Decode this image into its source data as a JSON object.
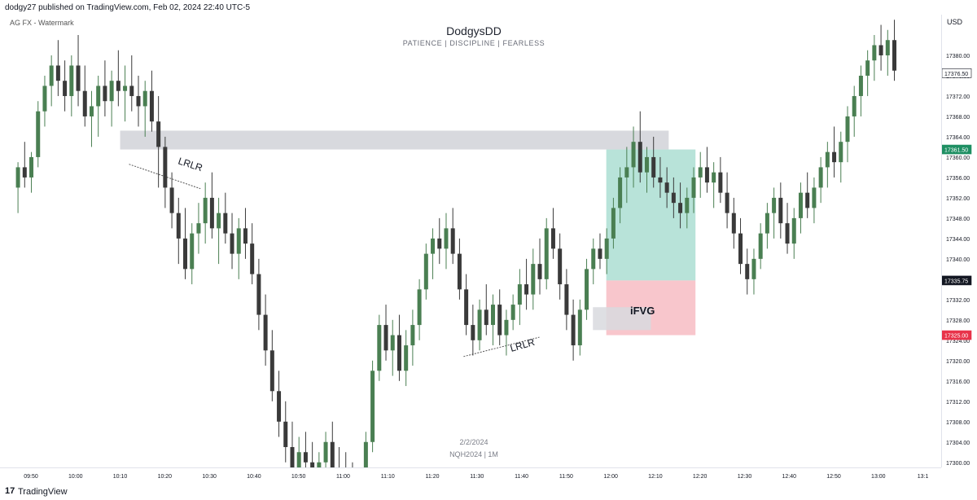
{
  "header": {
    "publish_line": "dodgy27 published on TradingView.com, Feb 02, 2024 22:40 UTC-5",
    "watermark_left": "AG FX - Watermark",
    "title": "DodgysDD",
    "subtitle": "PATIENCE   |   DISCIPLINE   |   FEARLESS",
    "currency": "USD",
    "date": "2/2/2024",
    "symbol": "NQH2024 | 1M"
  },
  "footer": {
    "logo": "17",
    "brand": "TradingView"
  },
  "colors": {
    "bull": "#4a7f52",
    "bear": "#3a3a3a",
    "green_zone": "#b8e3d9",
    "red_zone": "#f8c6cc",
    "gray_zone": "#d8d9de",
    "tag_green": "#1e8f63",
    "tag_black": "#131722",
    "tag_red": "#e8334a"
  },
  "annotations": {
    "lrlr_top": "LRLR",
    "lrlr_bottom": "LRLR",
    "ifvg": "iFVG"
  },
  "price_tags": {
    "last": "17376.50",
    "green": "17361.50",
    "black": "17335.75",
    "red": "17325.00"
  },
  "chart_data": {
    "type": "candlestick",
    "title": "DodgysDD",
    "symbol": "NQH2024",
    "timeframe": "1M",
    "ylim": [
      17299,
      17388
    ],
    "y_ticks": [
      "17380.00",
      "17376.00",
      "17372.00",
      "17368.00",
      "17364.00",
      "17360.00",
      "17356.00",
      "17352.00",
      "17348.00",
      "17344.00",
      "17340.00",
      "17336.00",
      "17332.00",
      "17328.00",
      "17324.00",
      "17320.00",
      "17316.00",
      "17312.00",
      "17308.00",
      "17304.00",
      "17300.00"
    ],
    "y_tick_values": [
      17380,
      17376,
      17372,
      17368,
      17364,
      17360,
      17356,
      17352,
      17348,
      17344,
      17340,
      17336,
      17332,
      17328,
      17324,
      17320,
      17316,
      17312,
      17308,
      17304,
      17300
    ],
    "x_ticks": [
      "09:50",
      "10:00",
      "10:10",
      "10:20",
      "10:30",
      "10:40",
      "10:50",
      "11:00",
      "11:10",
      "11:20",
      "11:30",
      "11:40",
      "11:50",
      "12:00",
      "12:10",
      "12:20",
      "12:30",
      "12:40",
      "12:50",
      "13:00",
      "13:1"
    ],
    "x_tick_minutes": [
      0,
      10,
      20,
      30,
      40,
      50,
      60,
      70,
      80,
      90,
      100,
      110,
      120,
      130,
      140,
      150,
      160,
      170,
      180,
      190,
      200
    ],
    "start_time": "09:46",
    "zones": [
      {
        "name": "gray-supply-zone",
        "from": "10:10",
        "to": "12:13",
        "top": 17365.2,
        "bottom": 17361.5
      },
      {
        "name": "green-target-zone",
        "from": "11:59",
        "to": "12:19",
        "top": 17361.5,
        "bottom": 17335.75
      },
      {
        "name": "red-stop-zone",
        "from": "11:59",
        "to": "12:19",
        "top": 17335.75,
        "bottom": 17325.0
      },
      {
        "name": "ifvg-zone",
        "from": "11:56",
        "to": "12:09",
        "top": 17330.5,
        "bottom": 17326.0
      }
    ],
    "trendlines": [
      {
        "name": "lrlr-top-line",
        "from": [
          "10:12",
          17358.6
        ],
        "to": [
          "10:28",
          17353.8
        ]
      },
      {
        "name": "lrlr-bottom-line",
        "from": [
          "11:27",
          17320.8
        ],
        "to": [
          "11:44",
          17324.6
        ]
      }
    ],
    "candles": [
      [
        17354,
        17359,
        17349,
        17358
      ],
      [
        17358,
        17363,
        17354,
        17356
      ],
      [
        17356,
        17361,
        17353,
        17360
      ],
      [
        17360,
        17371,
        17358,
        17369
      ],
      [
        17369,
        17376,
        17366,
        17374
      ],
      [
        17374,
        17380,
        17370,
        17378
      ],
      [
        17378,
        17383,
        17372,
        17375
      ],
      [
        17375,
        17379,
        17369,
        17372
      ],
      [
        17372,
        17380,
        17368,
        17378
      ],
      [
        17378,
        17384,
        17370,
        17373
      ],
      [
        17373,
        17378,
        17366,
        17368
      ],
      [
        17368,
        17373,
        17362,
        17370
      ],
      [
        17370,
        17376,
        17364,
        17374
      ],
      [
        17374,
        17379,
        17368,
        17371
      ],
      [
        17371,
        17377,
        17366,
        17375
      ],
      [
        17375,
        17381,
        17370,
        17373
      ],
      [
        17373,
        17378,
        17367,
        17374
      ],
      [
        17374,
        17380,
        17369,
        17372
      ],
      [
        17372,
        17376,
        17366,
        17370
      ],
      [
        17370,
        17375,
        17364,
        17373
      ],
      [
        17373,
        17377,
        17365,
        17367
      ],
      [
        17367,
        17372,
        17354,
        17362
      ],
      [
        17362,
        17364,
        17350,
        17354
      ],
      [
        17354,
        17357,
        17346,
        17349
      ],
      [
        17349,
        17352,
        17339,
        17344
      ],
      [
        17344,
        17350,
        17336,
        17338
      ],
      [
        17338,
        17347,
        17335,
        17345
      ],
      [
        17345,
        17351,
        17341,
        17347
      ],
      [
        17347,
        17355,
        17343,
        17352
      ],
      [
        17352,
        17357,
        17344,
        17346
      ],
      [
        17346,
        17352,
        17339,
        17349
      ],
      [
        17349,
        17353,
        17343,
        17345
      ],
      [
        17345,
        17349,
        17338,
        17341
      ],
      [
        17341,
        17348,
        17336,
        17346
      ],
      [
        17346,
        17350,
        17340,
        17343
      ],
      [
        17343,
        17347,
        17335,
        17337
      ],
      [
        17337,
        17340,
        17326,
        17329
      ],
      [
        17329,
        17333,
        17319,
        17322
      ],
      [
        17322,
        17326,
        17312,
        17314
      ],
      [
        17314,
        17318,
        17305,
        17308
      ],
      [
        17308,
        17312,
        17300,
        17303
      ],
      [
        17303,
        17308,
        17296,
        17299
      ],
      [
        17299,
        17305,
        17294,
        17302
      ],
      [
        17302,
        17306,
        17295,
        17300
      ],
      [
        17300,
        17304,
        17293,
        17296
      ],
      [
        17296,
        17302,
        17292,
        17300
      ],
      [
        17300,
        17306,
        17296,
        17304
      ],
      [
        17304,
        17308,
        17297,
        17299
      ],
      [
        17299,
        17303,
        17293,
        17297
      ],
      [
        17297,
        17302,
        17291,
        17295
      ],
      [
        17295,
        17300,
        17289,
        17293
      ],
      [
        17293,
        17298,
        17288,
        17296
      ],
      [
        17296,
        17306,
        17293,
        17304
      ],
      [
        17304,
        17320,
        17302,
        17318
      ],
      [
        17318,
        17329,
        17316,
        17327
      ],
      [
        17327,
        17331,
        17320,
        17322
      ],
      [
        17322,
        17328,
        17317,
        17325
      ],
      [
        17325,
        17329,
        17316,
        17318
      ],
      [
        17318,
        17326,
        17315,
        17323
      ],
      [
        17323,
        17330,
        17319,
        17327
      ],
      [
        17327,
        17336,
        17324,
        17334
      ],
      [
        17334,
        17343,
        17332,
        17341
      ],
      [
        17341,
        17346,
        17336,
        17344
      ],
      [
        17344,
        17348,
        17339,
        17342
      ],
      [
        17342,
        17349,
        17338,
        17346
      ],
      [
        17346,
        17350,
        17339,
        17341
      ],
      [
        17341,
        17344,
        17332,
        17334
      ],
      [
        17334,
        17337,
        17325,
        17327
      ],
      [
        17327,
        17331,
        17321,
        17324
      ],
      [
        17324,
        17332,
        17322,
        17330
      ],
      [
        17330,
        17335,
        17325,
        17327
      ],
      [
        17327,
        17333,
        17323,
        17331
      ],
      [
        17331,
        17334,
        17323,
        17325
      ],
      [
        17325,
        17330,
        17321,
        17328
      ],
      [
        17328,
        17333,
        17326,
        17331
      ],
      [
        17331,
        17338,
        17327,
        17335
      ],
      [
        17335,
        17340,
        17330,
        17333
      ],
      [
        17333,
        17342,
        17330,
        17339
      ],
      [
        17339,
        17344,
        17333,
        17336
      ],
      [
        17336,
        17348,
        17334,
        17346
      ],
      [
        17346,
        17350,
        17340,
        17342
      ],
      [
        17342,
        17345,
        17332,
        17335
      ],
      [
        17335,
        17338,
        17326,
        17329
      ],
      [
        17329,
        17332,
        17320,
        17323
      ],
      [
        17323,
        17332,
        17321,
        17330
      ],
      [
        17330,
        17340,
        17328,
        17338
      ],
      [
        17338,
        17344,
        17335,
        17342
      ],
      [
        17342,
        17345,
        17338,
        17340
      ],
      [
        17340,
        17346,
        17337,
        17344
      ],
      [
        17344,
        17352,
        17342,
        17350
      ],
      [
        17350,
        17358,
        17347,
        17356
      ],
      [
        17356,
        17362,
        17351,
        17358
      ],
      [
        17358,
        17366,
        17354,
        17363
      ],
      [
        17363,
        17369,
        17355,
        17357
      ],
      [
        17357,
        17362,
        17353,
        17360
      ],
      [
        17360,
        17364,
        17354,
        17356
      ],
      [
        17356,
        17360,
        17352,
        17355
      ],
      [
        17355,
        17358,
        17350,
        17353
      ],
      [
        17353,
        17356,
        17348,
        17351
      ],
      [
        17351,
        17355,
        17346,
        17349
      ],
      [
        17349,
        17354,
        17346,
        17352
      ],
      [
        17352,
        17358,
        17349,
        17356
      ],
      [
        17356,
        17361,
        17352,
        17358
      ],
      [
        17358,
        17362,
        17353,
        17355
      ],
      [
        17355,
        17359,
        17350,
        17357
      ],
      [
        17357,
        17360,
        17351,
        17353
      ],
      [
        17353,
        17357,
        17346,
        17349
      ],
      [
        17349,
        17352,
        17342,
        17345
      ],
      [
        17345,
        17348,
        17337,
        17339
      ],
      [
        17339,
        17342,
        17333,
        17336
      ],
      [
        17336,
        17342,
        17333,
        17340
      ],
      [
        17340,
        17347,
        17338,
        17345
      ],
      [
        17345,
        17351,
        17342,
        17349
      ],
      [
        17349,
        17354,
        17344,
        17352
      ],
      [
        17352,
        17355,
        17344,
        17347
      ],
      [
        17347,
        17351,
        17341,
        17343
      ],
      [
        17343,
        17350,
        17340,
        17348
      ],
      [
        17348,
        17355,
        17345,
        17353
      ],
      [
        17353,
        17357,
        17348,
        17350
      ],
      [
        17350,
        17356,
        17347,
        17354
      ],
      [
        17354,
        17360,
        17351,
        17358
      ],
      [
        17358,
        17363,
        17354,
        17361
      ],
      [
        17361,
        17366,
        17356,
        17359
      ],
      [
        17359,
        17365,
        17355,
        17363
      ],
      [
        17363,
        17370,
        17359,
        17368
      ],
      [
        17368,
        17374,
        17364,
        17372
      ],
      [
        17372,
        17378,
        17368,
        17376
      ],
      [
        17376,
        17381,
        17372,
        17379
      ],
      [
        17379,
        17384,
        17375,
        17382
      ],
      [
        17382,
        17386,
        17377,
        17380
      ],
      [
        17380,
        17385,
        17376,
        17383
      ],
      [
        17383,
        17387,
        17375,
        17377
      ]
    ]
  }
}
